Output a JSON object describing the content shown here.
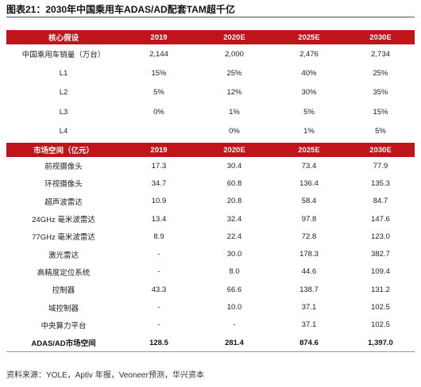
{
  "title": "图表21：2030年中国乘用车ADAS/AD配套TAM超千亿",
  "table1": {
    "headers": [
      "核心假设",
      "2019",
      "2020E",
      "2025E",
      "2030E"
    ],
    "rows": [
      [
        "中国乘用车销量（万台）",
        "2,144",
        "2,000",
        "2,476",
        "2,734"
      ],
      [
        "L1",
        "15%",
        "25%",
        "40%",
        "25%"
      ],
      [
        "L2",
        "5%",
        "12%",
        "30%",
        "35%"
      ],
      [
        "L3",
        "0%",
        "1%",
        "5%",
        "15%"
      ],
      [
        "L4",
        "",
        "0%",
        "1%",
        "5%"
      ]
    ]
  },
  "table2": {
    "headers": [
      "市场空间（亿元）",
      "2019",
      "2020E",
      "2025E",
      "2030E"
    ],
    "rows": [
      [
        "前视摄像头",
        "17.3",
        "30.4",
        "73.4",
        "77.9"
      ],
      [
        "环视摄像头",
        "34.7",
        "60.8",
        "136.4",
        "135.3"
      ],
      [
        "超声波雷达",
        "10.9",
        "20.8",
        "58.4",
        "84.7"
      ],
      [
        "24GHz 毫米波雷达",
        "13.4",
        "32.4",
        "97.8",
        "147.6"
      ],
      [
        "77GHz 毫米波雷达",
        "8.9",
        "22.4",
        "72.8",
        "123.0"
      ],
      [
        "激光雷达",
        "-",
        "30.0",
        "178.3",
        "382.7"
      ],
      [
        "高精度定位系统",
        "-",
        "8.0",
        "44.6",
        "109.4"
      ],
      [
        "控制器",
        "43.3",
        "66.6",
        "138.7",
        "131.2"
      ],
      [
        "域控制器",
        "-",
        "10.0",
        "37.1",
        "102.5"
      ],
      [
        "中央算力平台",
        "-",
        "-",
        "37.1",
        "102.5"
      ]
    ],
    "total": [
      "ADAS/AD市场空间",
      "128.5",
      "281.4",
      "874.6",
      "1,397.0"
    ]
  },
  "source": "资料来源：YOLE，Aptiv 年报，Veoneer预测，华兴资本"
}
